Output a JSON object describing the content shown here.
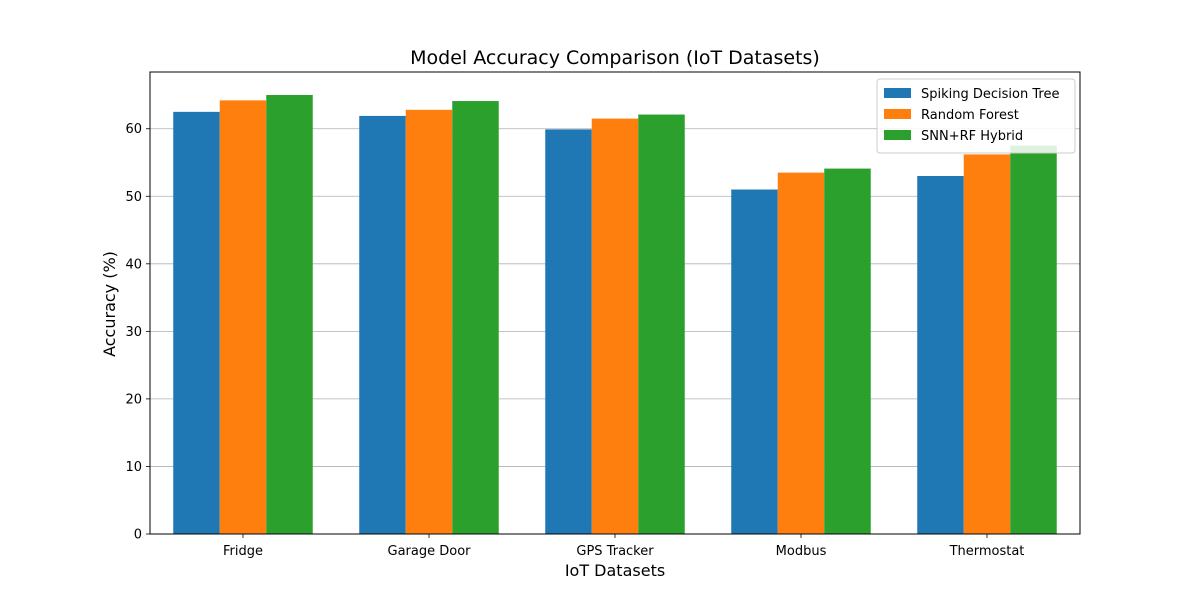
{
  "chart_data": {
    "type": "bar",
    "title": "Model Accuracy Comparison (IoT Datasets)",
    "xlabel": "IoT Datasets",
    "ylabel": "Accuracy (%)",
    "categories": [
      "Fridge",
      "Garage Door",
      "GPS Tracker",
      "Modbus",
      "Thermostat"
    ],
    "series": [
      {
        "name": "Spiking Decision Tree",
        "color": "#1f77b4",
        "values": [
          62.5,
          61.9,
          59.9,
          51.0,
          53.0
        ]
      },
      {
        "name": "Random Forest",
        "color": "#ff7f0e",
        "values": [
          64.2,
          62.8,
          61.5,
          53.5,
          56.2
        ]
      },
      {
        "name": "SNN+RF Hybrid",
        "color": "#2ca02c",
        "values": [
          65.0,
          64.1,
          62.1,
          54.1,
          57.5
        ]
      }
    ],
    "ylim": [
      0,
      68.4
    ],
    "yticks": [
      0,
      10,
      20,
      30,
      40,
      50,
      60
    ],
    "grid": "y",
    "legend_position": "top-right"
  }
}
